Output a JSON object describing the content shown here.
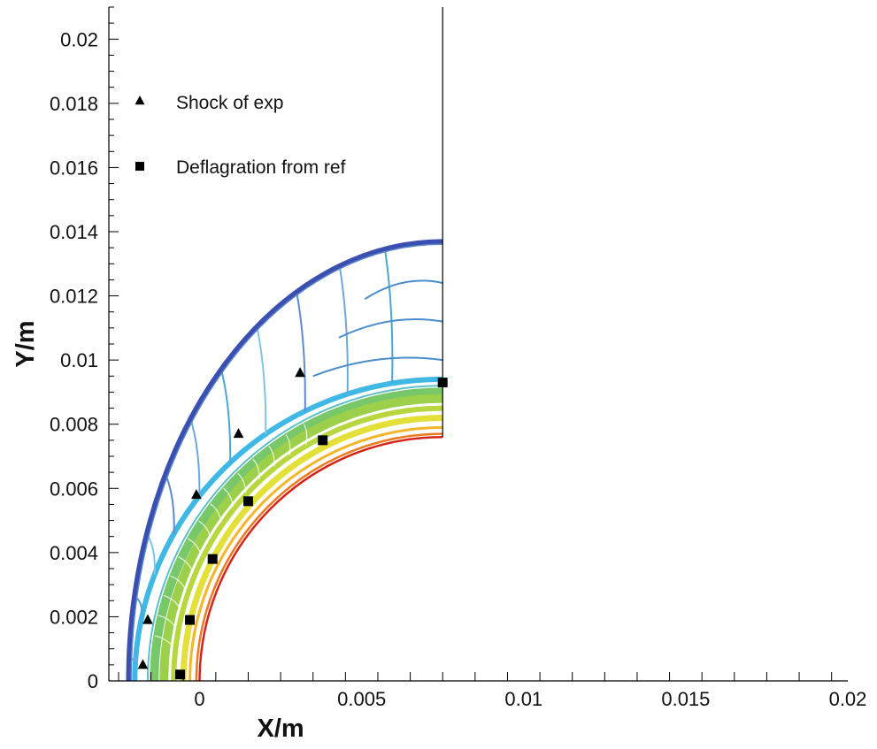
{
  "chart_data": {
    "type": "scatter",
    "title": "",
    "xlabel": "X/m",
    "ylabel": "Y/m",
    "xlim": [
      -0.0028,
      0.02
    ],
    "ylim": [
      0,
      0.021
    ],
    "xticks": [
      0,
      0.005,
      0.01,
      0.015,
      0.02
    ],
    "xtick_labels": [
      "0",
      "0.005",
      "0.01",
      "0.015",
      "0.02"
    ],
    "yticks": [
      0,
      0.002,
      0.004,
      0.006,
      0.008,
      0.01,
      0.012,
      0.014,
      0.016,
      0.018,
      0.02
    ],
    "ytick_labels": [
      "0",
      "0.002",
      "0.004",
      "0.006",
      "0.008",
      "0.01",
      "0.012",
      "0.014",
      "0.016",
      "0.018",
      "0.02"
    ],
    "legend": {
      "placement": "top-left",
      "entries": [
        {
          "label": "Shock of exp",
          "marker": "triangle",
          "color": "#000000"
        },
        {
          "label": "Deflagration from ref",
          "marker": "square",
          "color": "#000000"
        }
      ]
    },
    "series": [
      {
        "name": "Shock of exp",
        "marker": "triangle",
        "points": [
          {
            "x": -0.00175,
            "y": 0.0005
          },
          {
            "x": -0.0016,
            "y": 0.0019
          },
          {
            "x": -0.0001,
            "y": 0.0058
          },
          {
            "x": 0.0012,
            "y": 0.0077
          },
          {
            "x": 0.0031,
            "y": 0.0096
          }
        ]
      },
      {
        "name": "Deflagration from ref",
        "marker": "square",
        "points": [
          {
            "x": -0.0006,
            "y": 0.0002
          },
          {
            "x": -0.0003,
            "y": 0.0019
          },
          {
            "x": 0.0004,
            "y": 0.0038
          },
          {
            "x": 0.0015,
            "y": 0.0056
          },
          {
            "x": 0.0038,
            "y": 0.0075
          },
          {
            "x": 0.0075,
            "y": 0.0093
          }
        ]
      }
    ],
    "contour": {
      "domain_x_max": 0.0075,
      "domain_y_max": 0.021,
      "inner_boundary_y_at_xmax": 0.0076,
      "bands": [
        {
          "name": "shock-front",
          "r0": 0.00225,
          "r1": 0.0061,
          "color": "#3a4fb0",
          "width": 6
        },
        {
          "name": "shock-inner",
          "r0": 0.00205,
          "r1": 0.0058,
          "color": "#4f78c8",
          "width": 2
        },
        {
          "name": "flame-cyan",
          "r0": 0.00105,
          "r1": 0.0017,
          "color": "#45b5e0",
          "width": 6
        },
        {
          "name": "flame-green",
          "r0": 0.0008,
          "r1": 0.0013,
          "color": "#8cc84b",
          "width": 12
        },
        {
          "name": "flame-yellow",
          "r0": 0.0005,
          "r1": 0.0008,
          "color": "#e8df3a",
          "width": 8
        },
        {
          "name": "flame-orange",
          "r0": 0.0002,
          "r1": 0.0003,
          "color": "#f0a020",
          "width": 3
        },
        {
          "name": "flame-red",
          "r0": 0.0,
          "r1": 0.0,
          "color": "#d83020",
          "width": 3
        }
      ],
      "wave_lines_color": [
        "#6fa8d8",
        "#4aa6d6",
        "#7ec4e4",
        "#5d8ccc"
      ]
    }
  }
}
